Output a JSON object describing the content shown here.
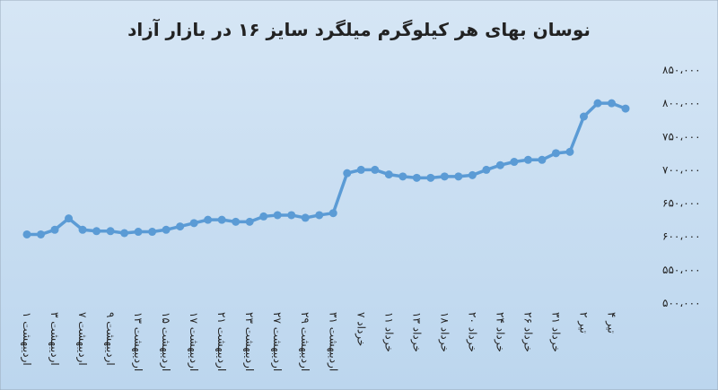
{
  "chart_data": {
    "type": "line",
    "title": "نوسان بهای هر کیلوگرم میلگرد سایز ۱۶ در بازار آزاد",
    "categories": [
      "۱ اردیبهشت",
      null,
      "۳ اردیبهشت",
      null,
      "۷ اردیبهشت",
      null,
      "۹ اردیبهشت",
      null,
      "۱۳ اردیبهشت",
      null,
      "۱۵ اردیبهشت",
      null,
      "۱۷ اردیبهشت",
      null,
      "۲۱ اردیبهشت",
      null,
      "۲۳ اردیبهشت",
      null,
      "۲۷ اردیبهشت",
      null,
      "۲۹ اردیبهشت",
      null,
      "۳۱ اردیبهشت",
      null,
      "۷ خرداد",
      null,
      "۱۱ خرداد",
      null,
      "۱۳ خرداد",
      null,
      "۱۸ خرداد",
      null,
      "۲۰ خرداد",
      null,
      "۲۴ خرداد",
      null,
      "۲۶ خرداد",
      null,
      "۳۱ خرداد",
      null,
      "۲ تیر",
      null,
      "۴ تیر",
      null
    ],
    "series": [
      {
        "color": "#5b9bd5",
        "values": [
          603000,
          603000,
          610000,
          627000,
          610000,
          608000,
          608000,
          605000,
          607000,
          607000,
          610000,
          615000,
          620000,
          625000,
          625000,
          622000,
          622000,
          630000,
          632000,
          632000,
          628000,
          632000,
          635000,
          695000,
          700000,
          700000,
          693000,
          690000,
          688000,
          688000,
          690000,
          690000,
          692000,
          700000,
          707000,
          712000,
          715000,
          715000,
          725000,
          727000,
          780000,
          800000,
          800000,
          792000
        ]
      }
    ],
    "ylim": [
      500000,
      850000
    ],
    "yticks": [
      {
        "value": 500000,
        "label": "۵۰۰،۰۰۰"
      },
      {
        "value": 550000,
        "label": "۵۵۰،۰۰۰"
      },
      {
        "value": 600000,
        "label": "۶۰۰،۰۰۰"
      },
      {
        "value": 650000,
        "label": "۶۵۰،۰۰۰"
      },
      {
        "value": 700000,
        "label": "۷۰۰،۰۰۰"
      },
      {
        "value": 750000,
        "label": "۷۵۰،۰۰۰"
      },
      {
        "value": 800000,
        "label": "۸۰۰،۰۰۰"
      },
      {
        "value": 850000,
        "label": "۸۵۰،۰۰۰"
      }
    ],
    "grid": false
  }
}
